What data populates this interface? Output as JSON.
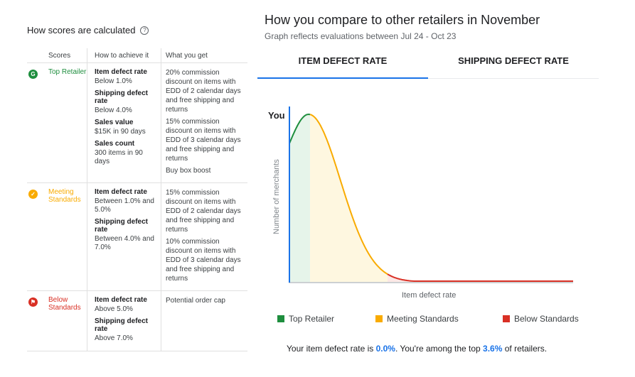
{
  "left_panel": {
    "title": "How scores are calculated",
    "help_icon": "?",
    "headers": {
      "scores": "Scores",
      "how": "How to achieve it",
      "get": "What you get"
    },
    "tiers": [
      {
        "name": "Top Retailer",
        "color": "#1e8e3e",
        "icon": "G",
        "criteria": [
          {
            "name": "Item defect rate",
            "value": "Below 1.0%"
          },
          {
            "name": "Shipping defect rate",
            "value": "Below 4.0%"
          },
          {
            "name": "Sales value",
            "value": "$15K in 90 days"
          },
          {
            "name": "Sales count",
            "value": "300 items in 90 days"
          }
        ],
        "benefits": [
          "20% commission discount on items with EDD of 2 calendar days and free shipping and returns",
          "15% commission discount on items with EDD of 3 calendar days and free shipping and returns",
          "Buy box boost"
        ]
      },
      {
        "name": "Meeting Standards",
        "color": "#f9ab00",
        "icon": "✓",
        "criteria": [
          {
            "name": "Item defect rate",
            "value": "Between 1.0% and 5.0%"
          },
          {
            "name": "Shipping defect rate",
            "value": "Between 4.0% and 7.0%"
          }
        ],
        "benefits": [
          "15% commission discount on items with EDD of 2 calendar days and free shipping and returns",
          "10% commission discount on items with EDD of 3 calendar days and free shipping and returns"
        ]
      },
      {
        "name": "Below Standards",
        "color": "#d93025",
        "icon": "⚑",
        "criteria": [
          {
            "name": "Item defect rate",
            "value": "Above 5.0%"
          },
          {
            "name": "Shipping defect rate",
            "value": "Above 7.0%"
          }
        ],
        "benefits": [
          "Potential order cap"
        ]
      }
    ]
  },
  "right_panel": {
    "title": "How you compare to other retailers in November",
    "subtitle": "Graph reflects evaluations between Jul 24 - Oct 23",
    "tabs": [
      "ITEM DEFECT RATE",
      "SHIPPING DEFECT RATE"
    ],
    "active_tab": 0,
    "you_label": "You",
    "legend": [
      {
        "label": "Top Retailer",
        "color": "#1e8e3e"
      },
      {
        "label": "Meeting Standards",
        "color": "#f9ab00"
      },
      {
        "label": "Below Standards",
        "color": "#d93025"
      }
    ],
    "summary": {
      "prefix": "Your item defect rate is ",
      "rate": "0.0%",
      "middle": ". You're among the top ",
      "top": "3.6%",
      "suffix": " of retailers."
    }
  },
  "chart_data": {
    "type": "area",
    "title": "",
    "xlabel": "Item defect rate",
    "ylabel": "Number of merchants",
    "marker": {
      "label": "You",
      "x": 0.0
    },
    "segments": [
      {
        "name": "Top Retailer",
        "color": "#1e8e3e"
      },
      {
        "name": "Meeting Standards",
        "color": "#f9ab00"
      },
      {
        "name": "Below Standards",
        "color": "#d93025"
      }
    ],
    "grid": false
  }
}
